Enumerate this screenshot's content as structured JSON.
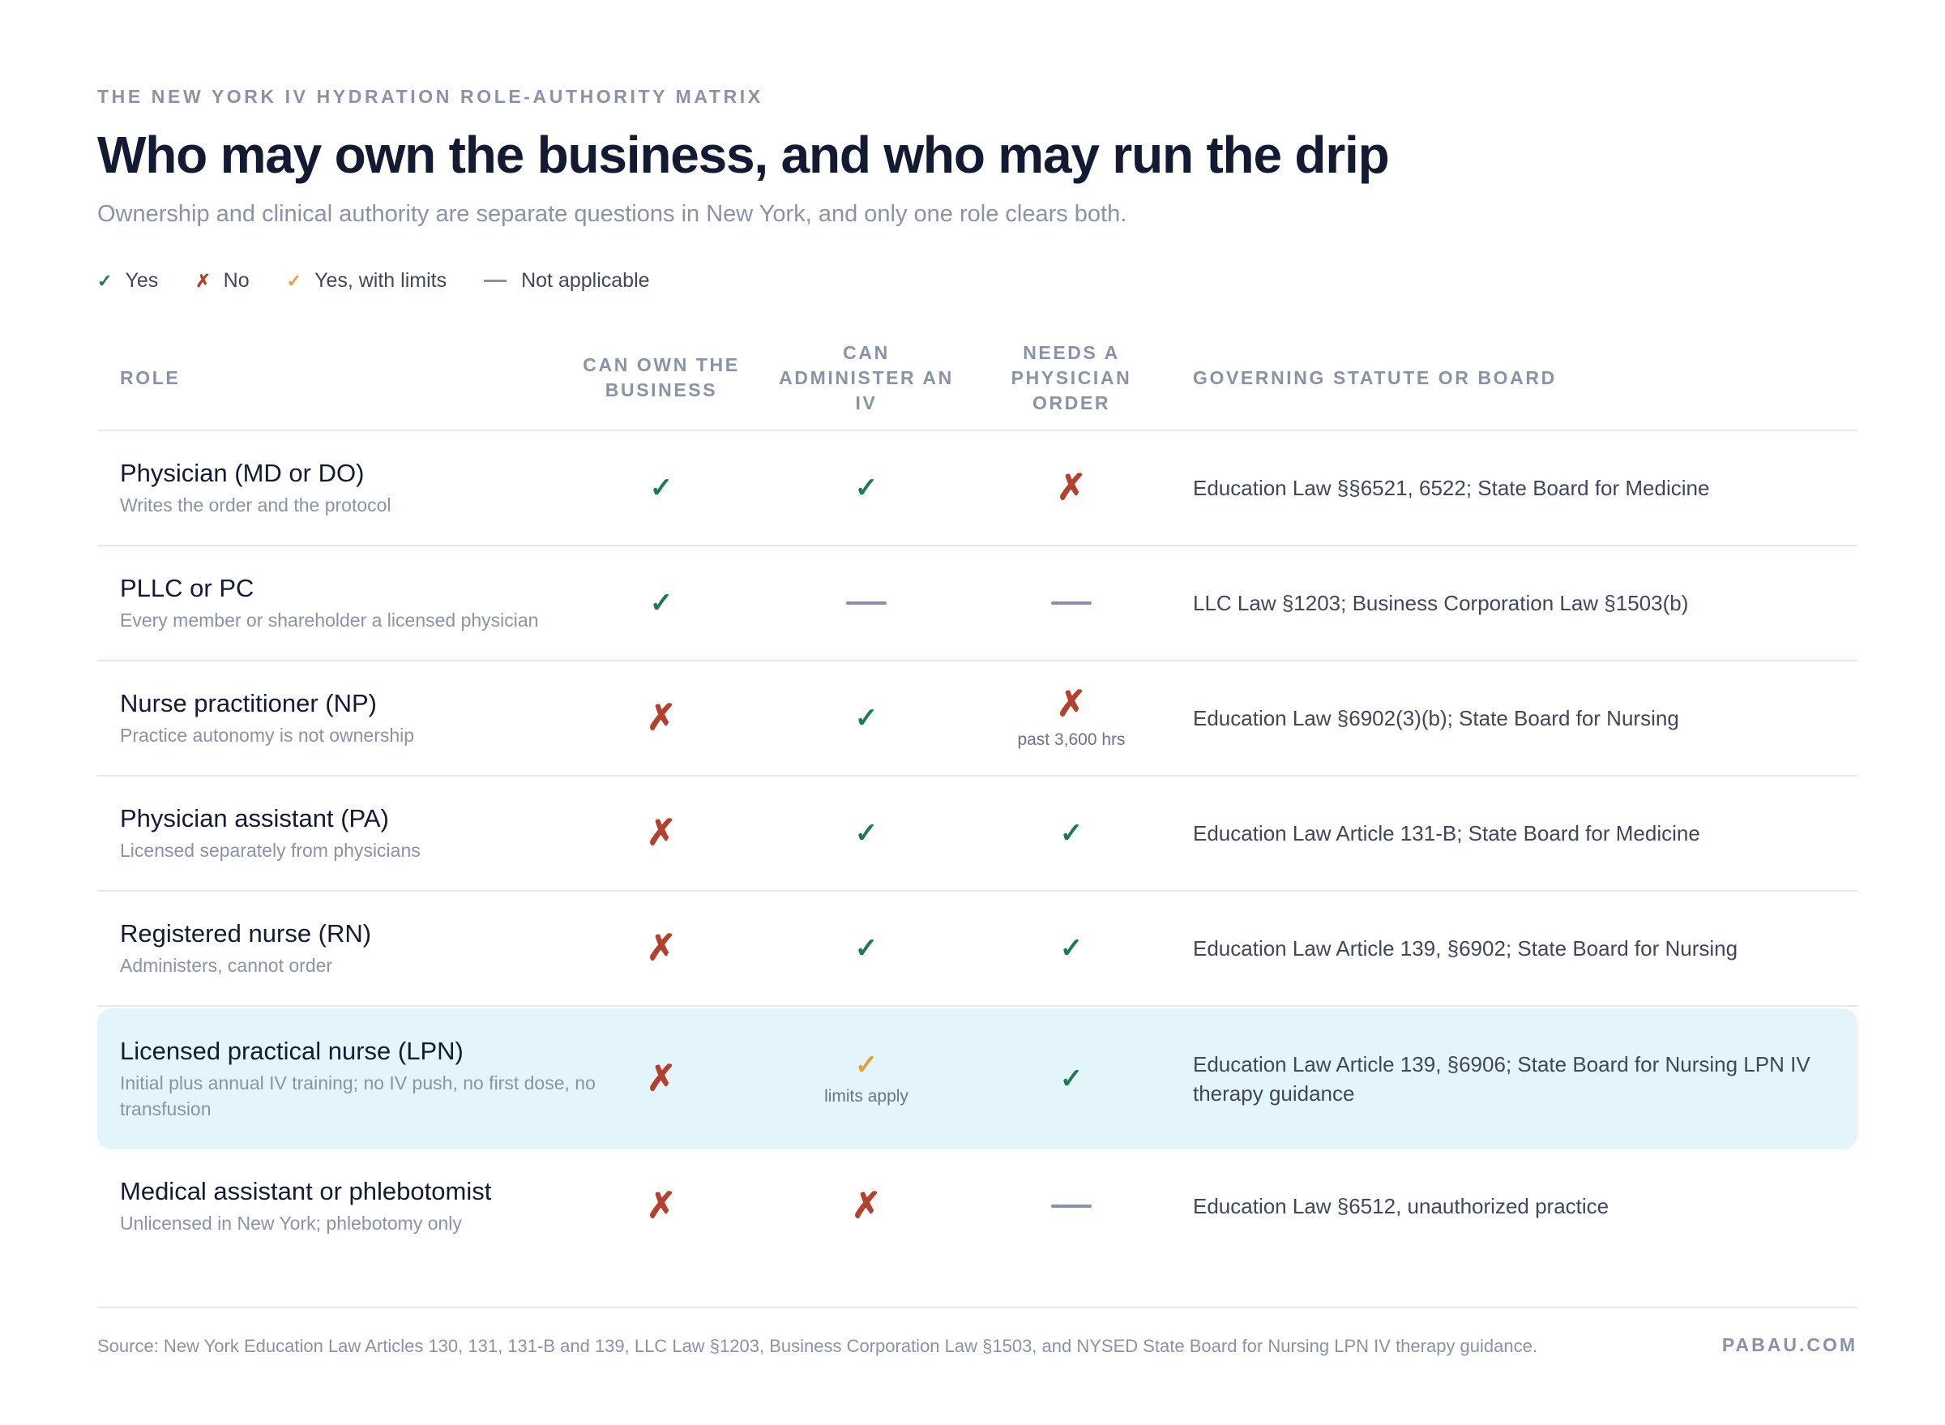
{
  "header": {
    "eyebrow": "THE NEW YORK IV HYDRATION ROLE-AUTHORITY MATRIX",
    "title": "Who may own the business, and who may run the drip",
    "subtitle": "Ownership and clinical authority are separate questions in New York, and only one role clears both."
  },
  "legend": {
    "yes": "Yes",
    "no": "No",
    "limits": "Yes, with limits",
    "na": "Not applicable"
  },
  "columns": {
    "role": "ROLE",
    "own": "CAN OWN THE BUSINESS",
    "administer": "CAN ADMINISTER AN IV",
    "order": "NEEDS A PHYSICIAN ORDER",
    "statute": "GOVERNING STATUTE OR BOARD"
  },
  "rows": [
    {
      "name": "Physician (MD or DO)",
      "note": "Writes the order and the protocol",
      "own": "yes",
      "administer": "yes",
      "order": "no",
      "own_note": "",
      "administer_note": "",
      "order_note": "",
      "statute": "Education Law §§6521, 6522; State Board for Medicine",
      "highlight": false
    },
    {
      "name": "PLLC or PC",
      "note": "Every member or shareholder a licensed physician",
      "own": "yes",
      "administer": "na",
      "order": "na",
      "own_note": "",
      "administer_note": "",
      "order_note": "",
      "statute": "LLC Law §1203; Business Corporation Law §1503(b)",
      "highlight": false
    },
    {
      "name": "Nurse practitioner (NP)",
      "note": "Practice autonomy is not ownership",
      "own": "no",
      "administer": "yes",
      "order": "no",
      "own_note": "",
      "administer_note": "",
      "order_note": "past 3,600 hrs",
      "statute": "Education Law §6902(3)(b); State Board for Nursing",
      "highlight": false
    },
    {
      "name": "Physician assistant (PA)",
      "note": "Licensed separately from physicians",
      "own": "no",
      "administer": "yes",
      "order": "yes",
      "own_note": "",
      "administer_note": "",
      "order_note": "",
      "statute": "Education Law Article 131-B; State Board for Medicine",
      "highlight": false
    },
    {
      "name": "Registered nurse (RN)",
      "note": "Administers, cannot order",
      "own": "no",
      "administer": "yes",
      "order": "yes",
      "own_note": "",
      "administer_note": "",
      "order_note": "",
      "statute": "Education Law Article 139, §6902; State Board for Nursing",
      "highlight": false
    },
    {
      "name": "Licensed practical nurse (LPN)",
      "note": "Initial plus annual IV training; no IV push, no first dose, no transfusion",
      "own": "no",
      "administer": "limits",
      "order": "yes",
      "own_note": "",
      "administer_note": "limits apply",
      "order_note": "",
      "statute": "Education Law Article 139, §6906; State Board for Nursing LPN IV therapy guidance",
      "highlight": true
    },
    {
      "name": "Medical assistant or phlebotomist",
      "note": "Unlicensed in New York; phlebotomy only",
      "own": "no",
      "administer": "no",
      "order": "na",
      "own_note": "",
      "administer_note": "",
      "order_note": "",
      "statute": "Education Law §6512, unauthorized practice",
      "highlight": false
    }
  ],
  "symbols": {
    "yes": "✓",
    "no": "✗",
    "limits": "✓"
  },
  "colors": {
    "yes": "#1f7a52",
    "no": "#b3412f",
    "limits": "#e3a23a",
    "highlight_row": "#e3f5fa"
  },
  "footer": {
    "source": "Source: New York Education Law Articles 130, 131, 131-B and 139, LLC Law §1203, Business Corporation Law §1503, and NYSED State Board for Nursing LPN IV therapy guidance.",
    "brand": "PABAU.COM"
  }
}
